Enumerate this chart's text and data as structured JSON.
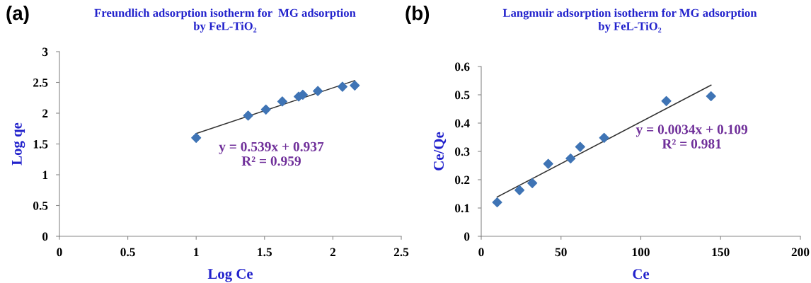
{
  "chart_data": [
    {
      "type": "scatter",
      "title": "Freundlich adsorption isotherm for  MG adsorption\nby FeL-TiO₂",
      "xlabel": "Log Ce",
      "ylabel": "Log qe",
      "xlim": [
        0,
        2.5
      ],
      "xticks": [
        0,
        0.5,
        1,
        1.5,
        2,
        2.5
      ],
      "ylim": [
        0,
        3
      ],
      "yticks": [
        0,
        0.5,
        1,
        1.5,
        2,
        2.5,
        3
      ],
      "grid": false,
      "legend": false,
      "annotations": [
        "(a)",
        "y = 0.539x + 0.937\nR² = 0.959"
      ],
      "series": [
        {
          "marker": "diamond",
          "color": "#3f74b5",
          "x": [
            1.0,
            1.38,
            1.51,
            1.63,
            1.75,
            1.78,
            1.89,
            2.07,
            2.16
          ],
          "values": [
            1.6,
            1.96,
            2.06,
            2.19,
            2.27,
            2.3,
            2.36,
            2.43,
            2.45
          ]
        },
        {
          "type": "line",
          "marker": "none",
          "color": "#333333",
          "x": [
            1.0,
            2.16
          ],
          "values": [
            1.67,
            2.53
          ]
        }
      ]
    },
    {
      "type": "scatter",
      "title": "Langmuir adsorption isotherm for MG adsorption\nby FeL-TiO₂",
      "xlabel": "Ce",
      "ylabel": "Ce/Qe",
      "xlim": [
        0,
        200
      ],
      "xticks": [
        0,
        50,
        100,
        150,
        200
      ],
      "ylim": [
        0,
        0.6
      ],
      "yticks": [
        0,
        0.1,
        0.2,
        0.3,
        0.4,
        0.5,
        0.6
      ],
      "grid": false,
      "legend": false,
      "annotations": [
        "(b)",
        "y = 0.0034x + 0.109\nR² = 0.981"
      ],
      "series": [
        {
          "marker": "diamond",
          "color": "#3f74b5",
          "x": [
            10,
            24,
            32,
            42,
            56,
            62,
            77,
            116,
            144
          ],
          "values": [
            0.12,
            0.163,
            0.188,
            0.256,
            0.275,
            0.316,
            0.348,
            0.478,
            0.495
          ]
        },
        {
          "type": "line",
          "marker": "none",
          "color": "#333333",
          "x": [
            10,
            144
          ],
          "values": [
            0.139,
            0.534
          ]
        }
      ]
    }
  ]
}
